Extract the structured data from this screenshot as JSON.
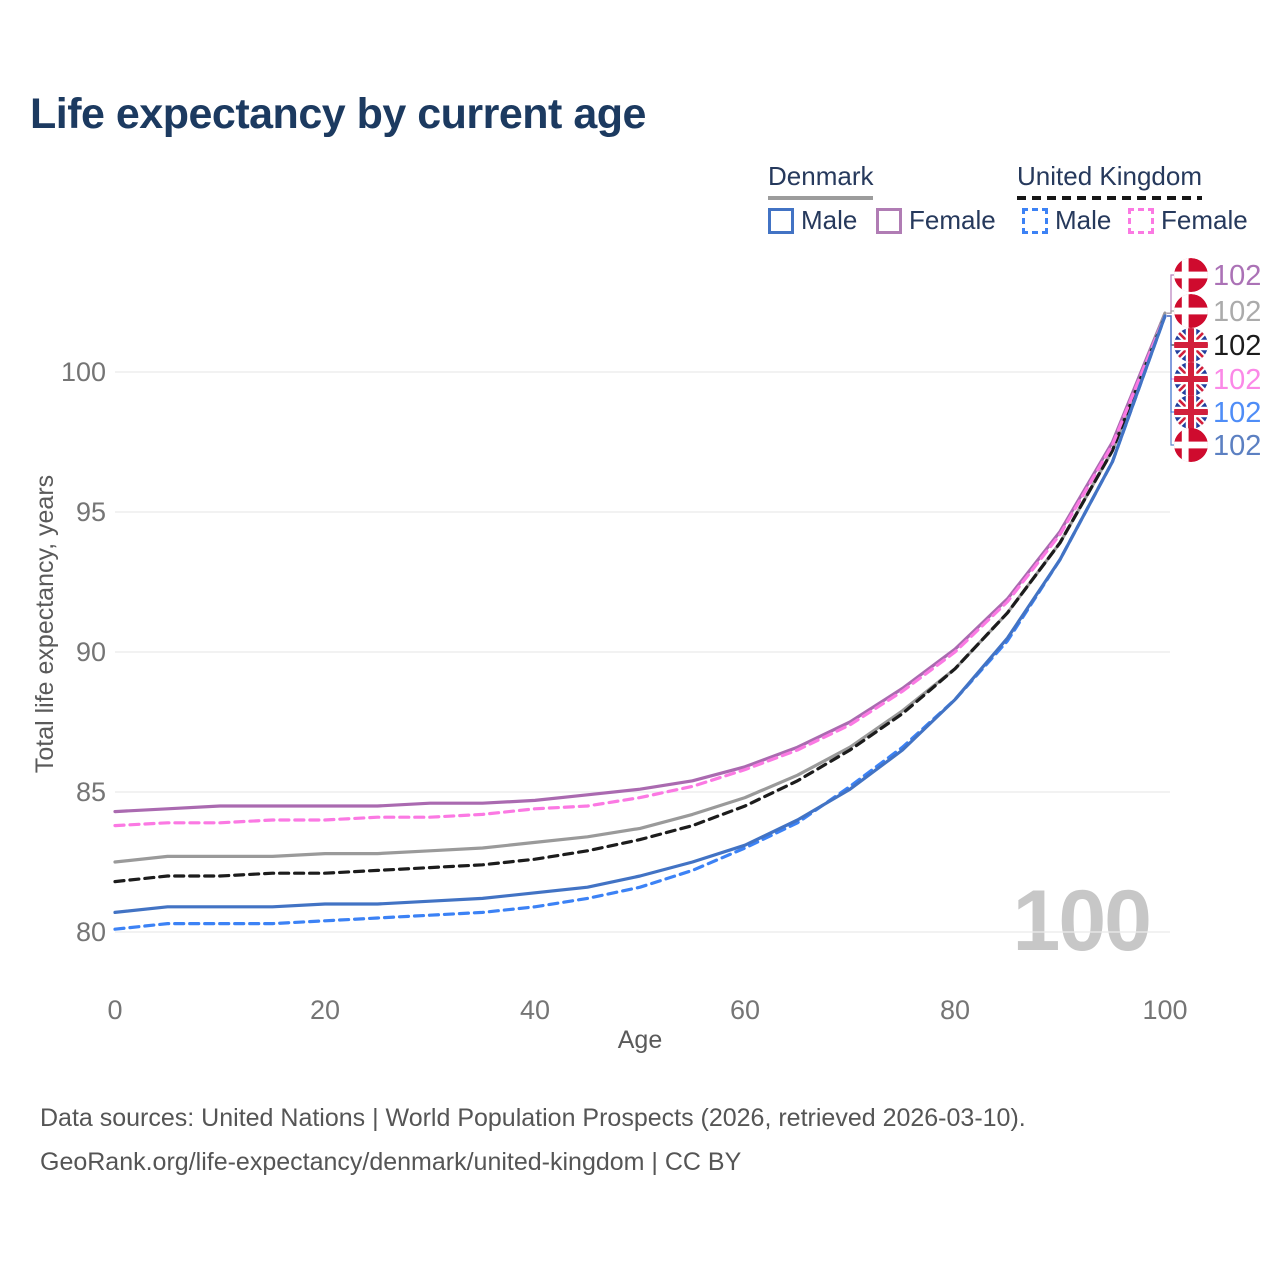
{
  "title": "Life expectancy by current age",
  "legend": {
    "groups": [
      {
        "id": "denmark",
        "label": "Denmark",
        "swatch_color": "#9c9c9c",
        "line_style": "solid",
        "items": [
          {
            "label": "Male",
            "color": "#4273c4",
            "line_style": "solid"
          },
          {
            "label": "Female",
            "color": "#b07cb4",
            "line_style": "solid"
          }
        ]
      },
      {
        "id": "united-kingdom",
        "label": "United Kingdom",
        "swatch_color": "#161616",
        "line_style": "dashed",
        "items": [
          {
            "label": "Male",
            "color": "#3c82f5",
            "line_style": "dashed"
          },
          {
            "label": "Female",
            "color": "#fb79e3",
            "line_style": "dashed"
          }
        ]
      }
    ]
  },
  "watermark": "100",
  "footer": {
    "line1": "Data sources: United Nations | World Population Prospects (2026, retrieved 2026-03-10).",
    "line2": "GeoRank.org/life-expectancy/denmark/united-kingdom | CC BY"
  },
  "chart_data": {
    "type": "line",
    "title": "Life expectancy by current age",
    "xlabel": "Age",
    "ylabel": "Total life expectancy, years",
    "xlim": [
      0,
      100
    ],
    "ylim": [
      79,
      103
    ],
    "x_ticks": [
      0,
      20,
      40,
      60,
      80,
      100
    ],
    "y_ticks": [
      80,
      85,
      90,
      95,
      100
    ],
    "grid": "horizontal",
    "legend_position": "top-right",
    "ages": [
      0,
      5,
      10,
      15,
      20,
      25,
      30,
      35,
      40,
      45,
      50,
      55,
      60,
      65,
      70,
      75,
      80,
      85,
      90,
      95,
      100
    ],
    "series": [
      {
        "id": "denmark-female",
        "country": "Denmark",
        "sex": "Female",
        "color": "#aa6ab0",
        "label_color": "#ab72b6",
        "line_style": "solid",
        "flag": "dk",
        "end_label": "102",
        "values": [
          84.3,
          84.4,
          84.5,
          84.5,
          84.5,
          84.5,
          84.6,
          84.6,
          84.7,
          84.9,
          85.1,
          85.4,
          85.9,
          86.6,
          87.5,
          88.7,
          90.1,
          91.9,
          94.3,
          97.5,
          102.1
        ]
      },
      {
        "id": "denmark-all",
        "country": "Denmark",
        "sex": "All",
        "color": "#9a9a9a",
        "label_color": "#ababab",
        "line_style": "solid",
        "flag": "dk",
        "end_label": "102",
        "values": [
          82.5,
          82.7,
          82.7,
          82.7,
          82.8,
          82.8,
          82.9,
          83.0,
          83.2,
          83.4,
          83.7,
          84.2,
          84.8,
          85.6,
          86.6,
          87.9,
          89.4,
          91.4,
          93.9,
          97.2,
          102.1
        ]
      },
      {
        "id": "uk-all",
        "country": "United Kingdom",
        "sex": "All",
        "color": "#1c1c1c",
        "label_color": "#1c1c1c",
        "line_style": "dashed",
        "flag": "uk",
        "end_label": "102",
        "values": [
          81.8,
          82.0,
          82.0,
          82.1,
          82.1,
          82.2,
          82.3,
          82.4,
          82.6,
          82.9,
          83.3,
          83.8,
          84.5,
          85.4,
          86.5,
          87.8,
          89.4,
          91.4,
          93.9,
          97.2,
          102.0
        ]
      },
      {
        "id": "uk-female",
        "country": "United Kingdom",
        "sex": "Female",
        "color": "#fb79e3",
        "label_color": "#fb89e7",
        "line_style": "dashed",
        "flag": "uk",
        "end_label": "102",
        "values": [
          83.8,
          83.9,
          83.9,
          84.0,
          84.0,
          84.1,
          84.1,
          84.2,
          84.4,
          84.5,
          84.8,
          85.2,
          85.8,
          86.5,
          87.4,
          88.6,
          90.0,
          91.8,
          94.2,
          97.4,
          102.0
        ]
      },
      {
        "id": "uk-male",
        "country": "United Kingdom",
        "sex": "Male",
        "color": "#3c82f5",
        "label_color": "#4f8df7",
        "line_style": "dashed",
        "flag": "uk",
        "end_label": "102",
        "values": [
          80.1,
          80.3,
          80.3,
          80.3,
          80.4,
          80.5,
          80.6,
          80.7,
          80.9,
          81.2,
          81.6,
          82.2,
          83.0,
          83.9,
          85.2,
          86.6,
          88.3,
          90.4,
          93.3,
          96.8,
          102.0
        ]
      },
      {
        "id": "denmark-male",
        "country": "Denmark",
        "sex": "Male",
        "color": "#4273c4",
        "label_color": "#5c80c2",
        "line_style": "solid",
        "flag": "dk",
        "end_label": "102",
        "values": [
          80.7,
          80.9,
          80.9,
          80.9,
          81.0,
          81.0,
          81.1,
          81.2,
          81.4,
          81.6,
          82.0,
          82.5,
          83.1,
          84.0,
          85.1,
          86.5,
          88.3,
          90.5,
          93.3,
          96.8,
          102.0
        ]
      }
    ]
  }
}
